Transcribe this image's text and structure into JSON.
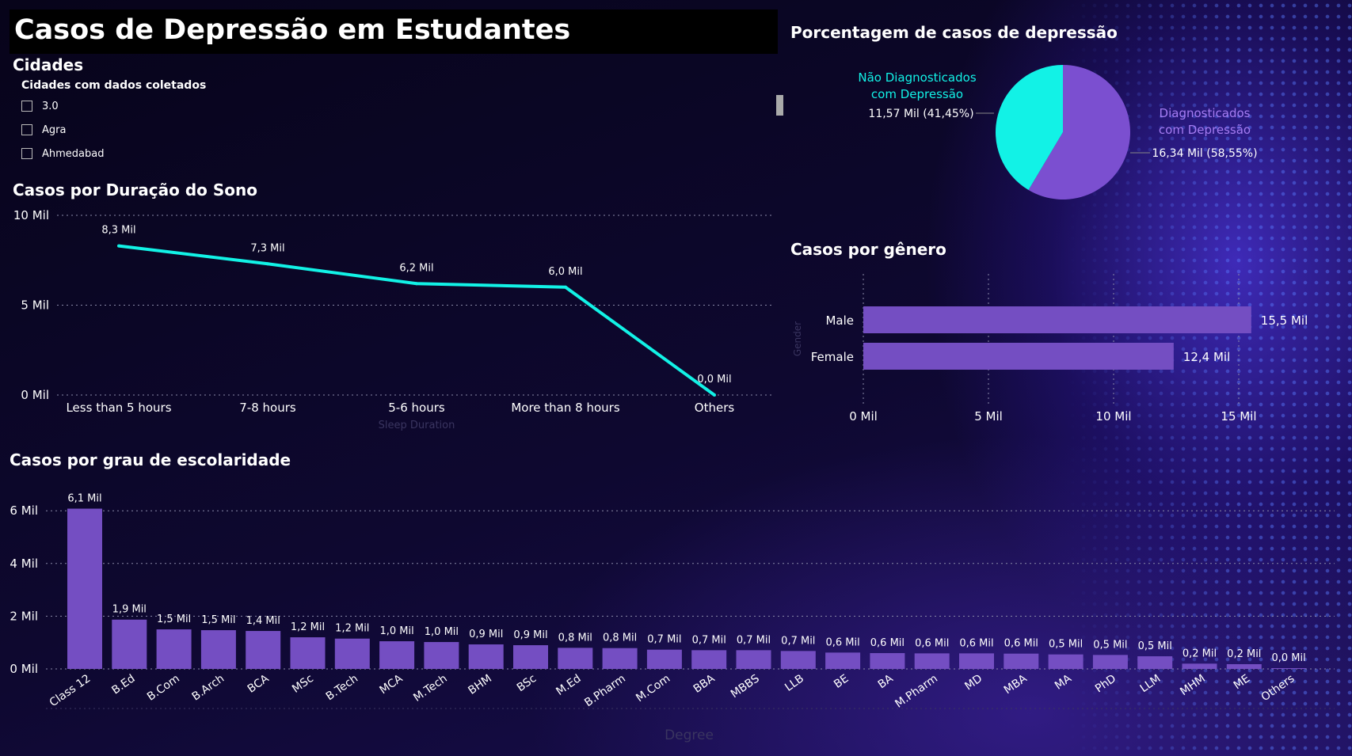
{
  "title": "Casos de Depressão em Estudantes",
  "cities": {
    "heading": "Cidades",
    "subtitle": "Cidades com dados coletados",
    "items": [
      "3.0",
      "Agra",
      "Ahmedabad"
    ]
  },
  "pie_title": "Porcentagem de casos de depressão",
  "gender_title": "Casos por gênero",
  "sleep_title": "Casos por Duração do Sono",
  "degree_title": "Casos por grau de escolaridade",
  "colors": {
    "accent_cyan": "#12f2e6",
    "purple": "#744ec2",
    "pie_purple": "#7b4fd0",
    "label_purple": "#a57cf2"
  },
  "chart_data": [
    {
      "id": "pie",
      "type": "pie",
      "slices": [
        {
          "name": "Não Diagnosticados com Depressão",
          "label_lines": [
            "Não Diagnosticados",
            "com Depressão"
          ],
          "value_label": "11,57 Mil (41,45%)",
          "value": 11570,
          "percent": 41.45,
          "color": "#12f2e6"
        },
        {
          "name": "Diagnosticados com Depressão",
          "label_lines": [
            "Diagnosticados",
            "com Depressão"
          ],
          "value_label": "16,34 Mil (58,55%)",
          "value": 16340,
          "percent": 58.55,
          "color": "#7b4fd0"
        }
      ]
    },
    {
      "id": "gender",
      "type": "bar",
      "orientation": "horizontal",
      "ylabel": "Gender",
      "categories": [
        "Male",
        "Female"
      ],
      "values": [
        15.5,
        12.4
      ],
      "data_labels": [
        "15,5 Mil",
        "12,4 Mil"
      ],
      "xticks": [
        0,
        5,
        10,
        15
      ],
      "xtick_labels": [
        "0 Mil",
        "5 Mil",
        "10 Mil",
        "15 Mil"
      ],
      "xlim": [
        0,
        15.5
      ],
      "grid": true
    },
    {
      "id": "sleep",
      "type": "line",
      "xlabel": "Sleep Duration",
      "categories": [
        "Less than 5 hours",
        "7-8 hours",
        "5-6 hours",
        "More than 8 hours",
        "Others"
      ],
      "values": [
        8.3,
        7.3,
        6.2,
        6.0,
        0.0
      ],
      "data_labels": [
        "8,3 Mil",
        "7,3 Mil",
        "6,2 Mil",
        "6,0 Mil",
        "0,0 Mil"
      ],
      "yticks": [
        0,
        5,
        10
      ],
      "ytick_labels": [
        "0 Mil",
        "5 Mil",
        "10 Mil"
      ],
      "ylim": [
        0,
        10
      ],
      "grid": true
    },
    {
      "id": "degree",
      "type": "bar",
      "xlabel": "Degree",
      "categories": [
        "Class 12",
        "B.Ed",
        "B.Com",
        "B.Arch",
        "BCA",
        "MSc",
        "B.Tech",
        "MCA",
        "M.Tech",
        "BHM",
        "BSc",
        "M.Ed",
        "B.Pharm",
        "M.Com",
        "BBA",
        "MBBS",
        "LLB",
        "BE",
        "BA",
        "M.Pharm",
        "MD",
        "MBA",
        "MA",
        "PhD",
        "LLM",
        "MHM",
        "ME",
        "Others"
      ],
      "values": [
        6.08,
        1.87,
        1.5,
        1.47,
        1.44,
        1.2,
        1.15,
        1.05,
        1.02,
        0.93,
        0.9,
        0.8,
        0.79,
        0.73,
        0.71,
        0.71,
        0.68,
        0.62,
        0.6,
        0.59,
        0.59,
        0.58,
        0.55,
        0.53,
        0.48,
        0.2,
        0.18,
        0.01
      ],
      "data_labels": [
        "6,1 Mil",
        "1,9 Mil",
        "1,5 Mil",
        "1,5 Mil",
        "1,4 Mil",
        "1,2 Mil",
        "1,2 Mil",
        "1,0 Mil",
        "1,0 Mil",
        "0,9 Mil",
        "0,9 Mil",
        "0,8 Mil",
        "0,8 Mil",
        "0,7 Mil",
        "0,7 Mil",
        "0,7 Mil",
        "0,7 Mil",
        "0,6 Mil",
        "0,6 Mil",
        "0,6 Mil",
        "0,6 Mil",
        "0,6 Mil",
        "0,5 Mil",
        "0,5 Mil",
        "0,5 Mil",
        "0,2 Mil",
        "0,2 Mil",
        "0,0 Mil"
      ],
      "yticks": [
        0,
        2,
        4,
        6
      ],
      "ytick_labels": [
        "0 Mil",
        "2 Mil",
        "4 Mil",
        "6 Mil"
      ],
      "ylim": [
        0,
        6.1
      ],
      "grid": true
    }
  ]
}
